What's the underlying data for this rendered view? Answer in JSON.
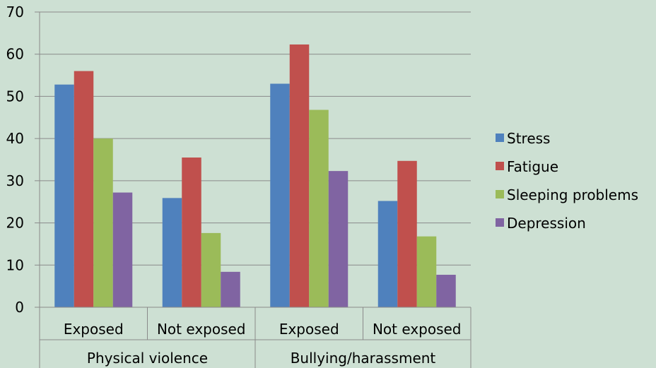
{
  "chart_data": {
    "type": "bar",
    "groups": [
      {
        "name": "Physical violence",
        "categories": [
          "Exposed",
          "Not exposed"
        ]
      },
      {
        "name": "Bullying/harassment",
        "categories": [
          "Exposed",
          "Not exposed"
        ]
      }
    ],
    "categories": [
      "Exposed",
      "Not exposed",
      "Exposed",
      "Not exposed"
    ],
    "series": [
      {
        "name": "Stress",
        "color": "#4f81bd",
        "values": [
          52.8,
          25.9,
          53.0,
          25.2
        ]
      },
      {
        "name": "Fatigue",
        "color": "#c0504d",
        "values": [
          56.0,
          35.5,
          62.3,
          34.7
        ]
      },
      {
        "name": "Sleeping problems",
        "color": "#9bbb59",
        "values": [
          40.0,
          17.6,
          46.8,
          16.8
        ]
      },
      {
        "name": "Depression",
        "color": "#8064a2",
        "values": [
          27.2,
          8.4,
          32.3,
          7.7
        ]
      }
    ],
    "ylim": [
      0,
      70
    ],
    "yticks": [
      0,
      10,
      20,
      30,
      40,
      50,
      60,
      70
    ],
    "grid": true,
    "legend_position": "right"
  }
}
